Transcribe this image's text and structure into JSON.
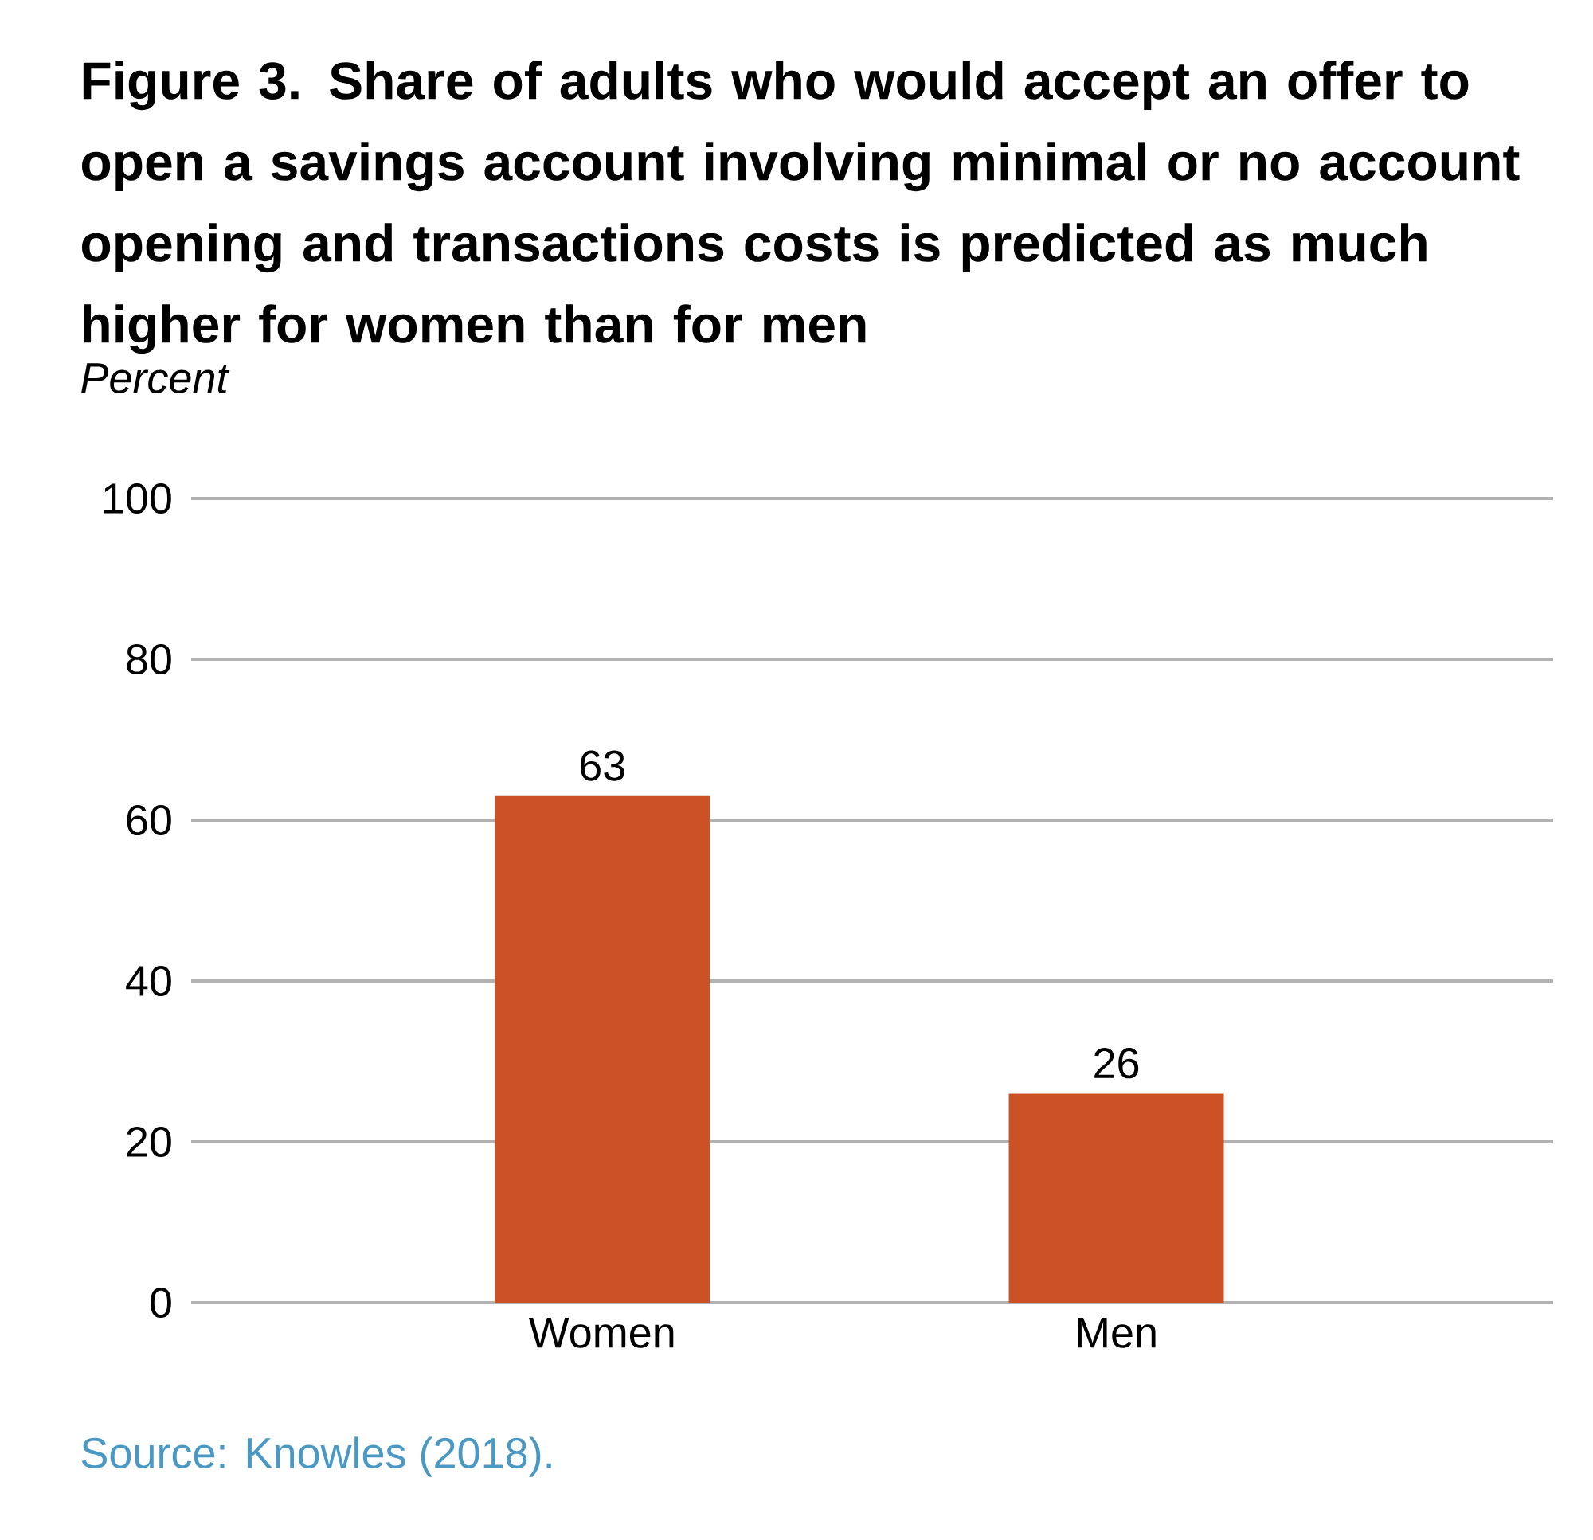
{
  "chart_data": {
    "type": "bar",
    "title": "Figure 3. Share of adults who would accept an offer to open a savings account involving minimal or no account opening and transactions costs is predicted as much higher for women than for men",
    "subtitle": "Percent",
    "categories": [
      "Women",
      "Men"
    ],
    "values": [
      63,
      26
    ],
    "color": "#cc5226",
    "ylim": [
      0,
      100
    ],
    "yticks": [
      0,
      20,
      40,
      60,
      80,
      100
    ],
    "grid": "y",
    "data_labels": true,
    "annotations": [
      "Source: Knowles (2018)."
    ]
  }
}
